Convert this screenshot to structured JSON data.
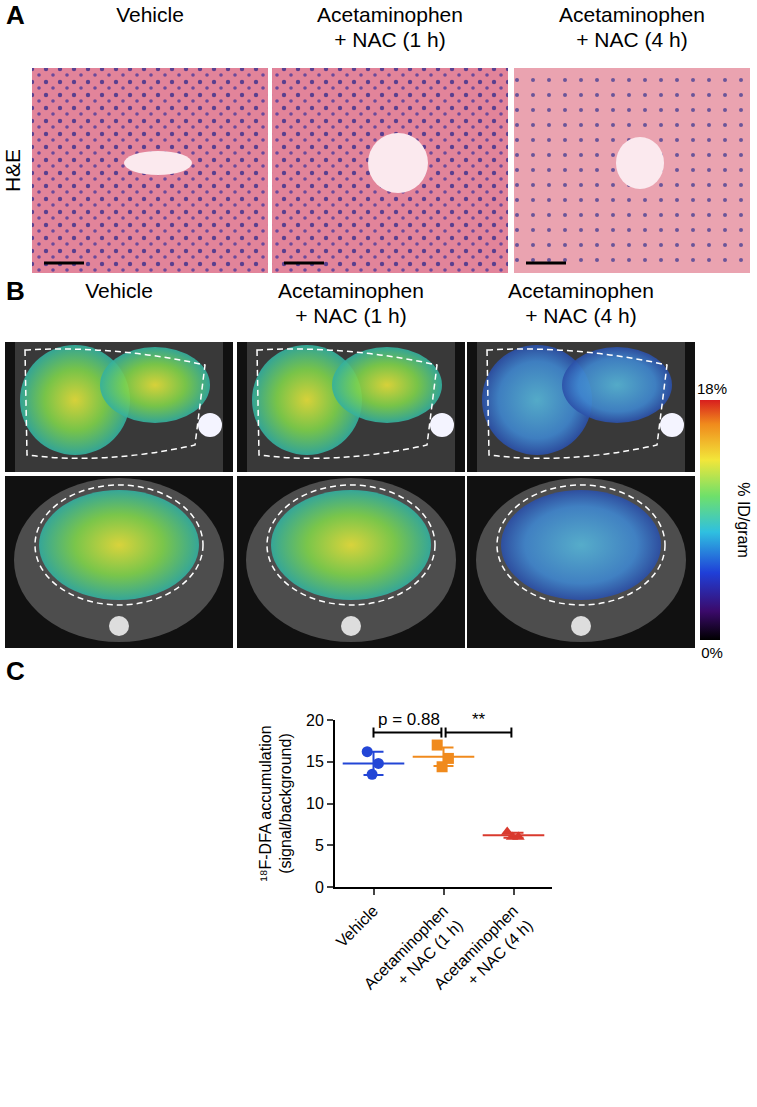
{
  "panels": {
    "A": {
      "label": "A",
      "row_label": "H&E",
      "columns": [
        "Vehicle",
        "Acetaminophen + NAC (1 h)",
        "Acetaminophen + NAC (4 h)"
      ]
    },
    "B": {
      "label": "B",
      "columns": [
        "Vehicle",
        "Acetaminophen + NAC (1 h)",
        "Acetaminophen + NAC (4 h)"
      ],
      "colorbar": {
        "title": "% ID/gram",
        "range": [
          0,
          18
        ],
        "ticks": [
          {
            "value": 18,
            "label": "18%"
          },
          {
            "value": 0,
            "label": "0%"
          }
        ]
      }
    },
    "C": {
      "label": "C"
    }
  },
  "chart_data": {
    "type": "scatter",
    "categories": [
      "Vehicle",
      "Acetaminophen + NAC (1 h)",
      "Acetaminophen + NAC (4 h)"
    ],
    "ylabel": [
      "¹⁸F-DFA accumulation",
      "(signal/background)"
    ],
    "ylim": [
      0,
      20
    ],
    "yticks": [
      0,
      5,
      10,
      15,
      20
    ],
    "grid": false,
    "series": [
      {
        "name": "Vehicle",
        "color": "#2346d6",
        "marker": "circle",
        "values": [
          16.2,
          14.8,
          13.5
        ],
        "mean": 14.8,
        "sem": 1.4
      },
      {
        "name": "Acetaminophen + NAC (1 h)",
        "color": "#f08a1c",
        "marker": "square",
        "values": [
          17.0,
          15.4,
          14.4
        ],
        "mean": 15.6,
        "sem": 1.1
      },
      {
        "name": "Acetaminophen + NAC (4 h)",
        "color": "#d93a2e",
        "marker": "triangle-up",
        "values": [
          6.6,
          6.0,
          6.0
        ],
        "mean": 6.2,
        "sem": 0.3
      }
    ],
    "annotations": [
      {
        "text": "p = 0.88",
        "between": [
          "Vehicle",
          "Acetaminophen + NAC (1 h)"
        ]
      },
      {
        "text": "**",
        "between": [
          "Acetaminophen + NAC (1 h)",
          "Acetaminophen + NAC (4 h)"
        ]
      }
    ]
  }
}
